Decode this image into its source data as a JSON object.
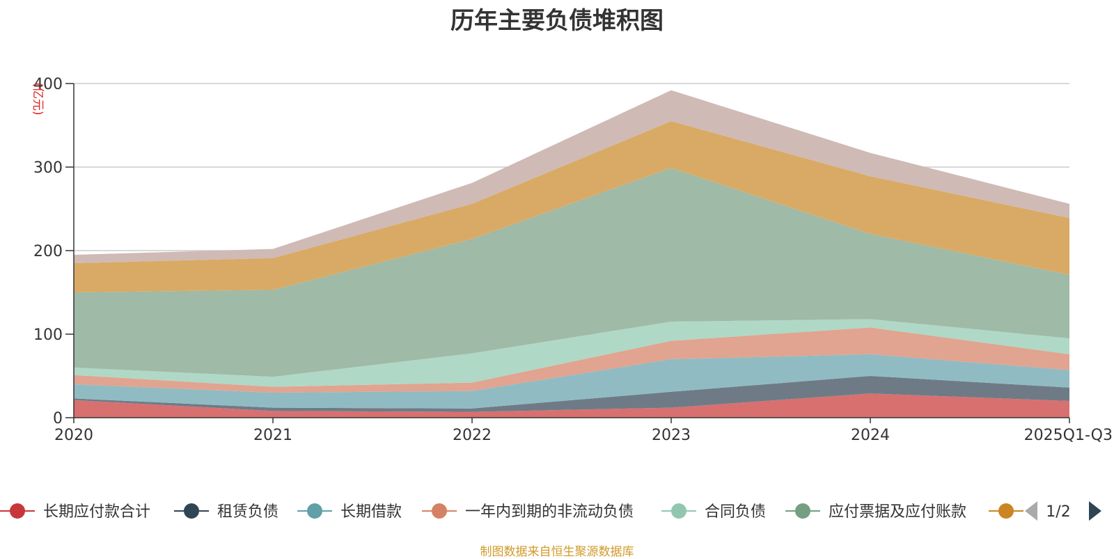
{
  "chart_data": {
    "type": "area",
    "stacked": true,
    "title": "历年主要负债堆积图",
    "unit": "(亿元)",
    "ylim": [
      0,
      400
    ],
    "yticks": [
      0,
      100,
      200,
      300,
      400
    ],
    "categories": [
      "2020",
      "2021",
      "2022",
      "2023",
      "2024",
      "2025Q1-Q3"
    ],
    "series": [
      {
        "name": "长期应付款合计",
        "color": "#d87070",
        "values": [
          21,
          8,
          7,
          12,
          29,
          20
        ]
      },
      {
        "name": "租赁负债",
        "color": "#6e7b86",
        "values": [
          2,
          4,
          4,
          19,
          21,
          16
        ]
      },
      {
        "name": "长期借款",
        "color": "#91bbc2",
        "values": [
          17,
          18,
          21,
          39,
          26,
          21
        ]
      },
      {
        "name": "一年内到期的非流动负债",
        "color": "#e0a490",
        "values": [
          11,
          7,
          10,
          22,
          32,
          19
        ]
      },
      {
        "name": "合同负债",
        "color": "#b0d8c6",
        "values": [
          9,
          12,
          35,
          23,
          10,
          19
        ]
      },
      {
        "name": "应付票据及应付账款",
        "color": "#9fbaa6",
        "values": [
          90,
          104,
          137,
          184,
          102,
          76
        ]
      },
      {
        "name": "",
        "color": "#d9aa65",
        "values": [
          35,
          38,
          42,
          56,
          69,
          68
        ]
      },
      {
        "name": "",
        "color": "#cfbab5",
        "values": [
          10,
          11,
          25,
          37,
          28,
          17
        ]
      }
    ],
    "legend_markers": [
      "#c8363a",
      "#2f4554",
      "#61a0a8",
      "#d48265",
      "#91c7ae",
      "#749f83",
      "#ca8622"
    ],
    "legend_page": "1/2"
  },
  "source_note": "制图数据来自恒生聚源数据库"
}
